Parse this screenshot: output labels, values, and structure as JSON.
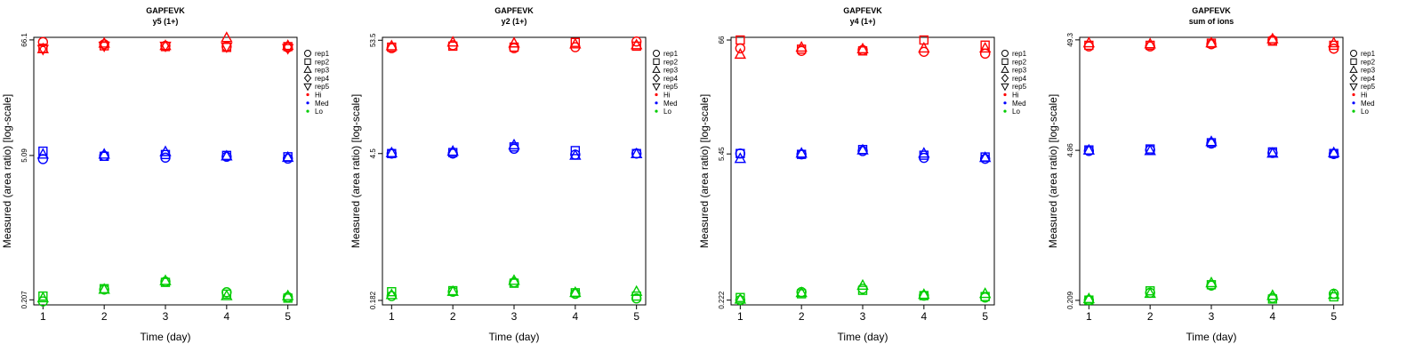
{
  "chart_data": [
    {
      "type": "scatter",
      "title": "GAPFEVK",
      "subtitle": "y5 (1+)",
      "xlabel": "Time (day)",
      "ylabel": "Measured (area ratio) [log-scale]",
      "x": [
        1,
        2,
        3,
        4,
        5
      ],
      "x_ticks": [
        "1",
        "2",
        "3",
        "4",
        "5"
      ],
      "y_scale": "log",
      "y_ticks": [
        0.207,
        5.09,
        66.1
      ],
      "y_tick_labels": [
        "0.207",
        "5.09",
        "66.1"
      ],
      "ylim": [
        0.185,
        70
      ],
      "legend_position": "right",
      "legend_shapes": [
        "rep1",
        "rep2",
        "rep3",
        "rep4",
        "rep5"
      ],
      "legend_levels": [
        {
          "name": "Hi",
          "color": "#ff0000"
        },
        {
          "name": "Med",
          "color": "#0000ff"
        },
        {
          "name": "Lo",
          "color": "#00cc00"
        }
      ],
      "series": [
        {
          "level": "Hi",
          "rep": "rep1",
          "values": [
            63,
            60,
            58,
            57,
            56
          ]
        },
        {
          "level": "Hi",
          "rep": "rep2",
          "values": [
            55,
            58,
            57,
            56,
            57
          ]
        },
        {
          "level": "Hi",
          "rep": "rep3",
          "values": [
            54,
            61,
            58,
            69,
            58
          ]
        },
        {
          "level": "Hi",
          "rep": "rep5",
          "values": [
            54,
            58,
            58,
            57,
            55
          ]
        },
        {
          "level": "Med",
          "rep": "rep1",
          "values": [
            4.7,
            5.05,
            4.85,
            4.95,
            4.75
          ]
        },
        {
          "level": "Med",
          "rep": "rep2",
          "values": [
            5.6,
            5.0,
            5.2,
            5.1,
            4.95
          ]
        },
        {
          "level": "Med",
          "rep": "rep3",
          "values": [
            5.2,
            5.2,
            5.5,
            5.0,
            4.85
          ]
        },
        {
          "level": "Lo",
          "rep": "rep1",
          "values": [
            0.2,
            0.26,
            0.31,
            0.245,
            0.22
          ]
        },
        {
          "level": "Lo",
          "rep": "rep2",
          "values": [
            0.225,
            0.265,
            0.305,
            0.235,
            0.215
          ]
        },
        {
          "level": "Lo",
          "rep": "rep3",
          "values": [
            0.215,
            0.26,
            0.315,
            0.225,
            0.225
          ]
        }
      ]
    },
    {
      "type": "scatter",
      "title": "GAPFEVK",
      "subtitle": "y2 (1+)",
      "xlabel": "Time (day)",
      "ylabel": "Measured (area ratio) [log-scale]",
      "x": [
        1,
        2,
        3,
        4,
        5
      ],
      "x_ticks": [
        "1",
        "2",
        "3",
        "4",
        "5"
      ],
      "y_scale": "log",
      "y_ticks": [
        0.182,
        4.5,
        53.5
      ],
      "y_tick_labels": [
        "0.182",
        "4.5",
        "53.5"
      ],
      "ylim": [
        0.165,
        57
      ],
      "legend_position": "right",
      "legend_shapes": [
        "rep1",
        "rep2",
        "rep3",
        "rep4",
        "rep5"
      ],
      "legend_levels": [
        {
          "name": "Hi",
          "color": "#ff0000"
        },
        {
          "name": "Med",
          "color": "#0000ff"
        },
        {
          "name": "Lo",
          "color": "#00cc00"
        }
      ],
      "series": [
        {
          "level": "Hi",
          "rep": "rep1",
          "values": [
            45,
            48,
            45,
            46,
            52
          ]
        },
        {
          "level": "Hi",
          "rep": "rep2",
          "values": [
            46,
            47,
            46,
            51,
            47
          ]
        },
        {
          "level": "Hi",
          "rep": "rep3",
          "values": [
            47,
            51,
            50,
            49,
            48
          ]
        },
        {
          "level": "Med",
          "rep": "rep1",
          "values": [
            4.5,
            4.5,
            5.0,
            4.4,
            4.5
          ]
        },
        {
          "level": "Med",
          "rep": "rep2",
          "values": [
            4.5,
            4.6,
            5.2,
            4.8,
            4.5
          ]
        },
        {
          "level": "Med",
          "rep": "rep3",
          "values": [
            4.55,
            4.7,
            5.4,
            4.3,
            4.45
          ]
        },
        {
          "level": "Lo",
          "rep": "rep1",
          "values": [
            0.2,
            0.22,
            0.27,
            0.21,
            0.19
          ]
        },
        {
          "level": "Lo",
          "rep": "rep2",
          "values": [
            0.22,
            0.225,
            0.265,
            0.215,
            0.2
          ]
        },
        {
          "level": "Lo",
          "rep": "rep3",
          "values": [
            0.205,
            0.22,
            0.28,
            0.215,
            0.22
          ]
        }
      ]
    },
    {
      "type": "scatter",
      "title": "GAPFEVK",
      "subtitle": "y4 (1+)",
      "xlabel": "Time (day)",
      "ylabel": "Measured (area ratio) [log-scale]",
      "x": [
        1,
        2,
        3,
        4,
        5
      ],
      "x_ticks": [
        "1",
        "2",
        "3",
        "4",
        "5"
      ],
      "y_scale": "log",
      "y_ticks": [
        0.222,
        5.45,
        66
      ],
      "y_tick_labels": [
        "0.222",
        "5.45",
        "66"
      ],
      "ylim": [
        0.2,
        70
      ],
      "legend_position": "right",
      "legend_shapes": [
        "rep1",
        "rep2",
        "rep3",
        "rep4",
        "rep5"
      ],
      "legend_levels": [
        {
          "name": "Hi",
          "color": "#ff0000"
        },
        {
          "name": "Med",
          "color": "#0000ff"
        },
        {
          "name": "Lo",
          "color": "#00cc00"
        }
      ],
      "series": [
        {
          "level": "Hi",
          "rep": "rep1",
          "values": [
            55,
            52,
            53,
            51,
            49
          ]
        },
        {
          "level": "Hi",
          "rep": "rep2",
          "values": [
            66,
            54,
            52,
            66,
            59
          ]
        },
        {
          "level": "Hi",
          "rep": "rep3",
          "values": [
            48,
            56,
            54,
            55,
            55
          ]
        },
        {
          "level": "Med",
          "rep": "rep1",
          "values": [
            5.5,
            5.4,
            5.8,
            5.0,
            4.9
          ]
        },
        {
          "level": "Med",
          "rep": "rep2",
          "values": [
            5.5,
            5.4,
            6.0,
            5.3,
            5.1
          ]
        },
        {
          "level": "Med",
          "rep": "rep3",
          "values": [
            4.9,
            5.5,
            5.9,
            5.5,
            5.0
          ]
        },
        {
          "level": "Lo",
          "rep": "rep1",
          "values": [
            0.222,
            0.265,
            0.285,
            0.245,
            0.235
          ]
        },
        {
          "level": "Lo",
          "rep": "rep2",
          "values": [
            0.235,
            0.255,
            0.275,
            0.245,
            0.24
          ]
        },
        {
          "level": "Lo",
          "rep": "rep3",
          "values": [
            0.225,
            0.26,
            0.305,
            0.25,
            0.255
          ]
        }
      ]
    },
    {
      "type": "scatter",
      "title": "GAPFEVK",
      "subtitle": "sum of ions",
      "xlabel": "Time (day)",
      "ylabel": "Measured (area ratio) [log-scale]",
      "x": [
        1,
        2,
        3,
        4,
        5
      ],
      "x_ticks": [
        "1",
        "2",
        "3",
        "4",
        "5"
      ],
      "y_scale": "log",
      "y_ticks": [
        0.209,
        4.86,
        49.3
      ],
      "y_tick_labels": [
        "0.209",
        "4.86",
        "49.3"
      ],
      "ylim": [
        0.19,
        52
      ],
      "legend_position": "right",
      "legend_shapes": [
        "rep1",
        "rep2",
        "rep3",
        "rep4",
        "rep5"
      ],
      "legend_levels": [
        {
          "name": "Hi",
          "color": "#ff0000"
        },
        {
          "name": "Med",
          "color": "#0000ff"
        },
        {
          "name": "Lo",
          "color": "#00cc00"
        }
      ],
      "series": [
        {
          "level": "Hi",
          "rep": "rep1",
          "values": [
            43,
            43,
            45,
            49,
            41
          ]
        },
        {
          "level": "Hi",
          "rep": "rep2",
          "values": [
            44,
            44,
            46,
            48,
            44
          ]
        },
        {
          "level": "Hi",
          "rep": "rep3",
          "values": [
            46,
            45,
            46,
            50,
            46
          ]
        },
        {
          "level": "Med",
          "rep": "rep1",
          "values": [
            4.8,
            4.9,
            5.6,
            4.6,
            4.5
          ]
        },
        {
          "level": "Med",
          "rep": "rep2",
          "values": [
            4.9,
            5.0,
            5.7,
            4.7,
            4.55
          ]
        },
        {
          "level": "Med",
          "rep": "rep3",
          "values": [
            4.85,
            4.8,
            5.8,
            4.55,
            4.6
          ]
        },
        {
          "level": "Lo",
          "rep": "rep1",
          "values": [
            0.21,
            0.245,
            0.285,
            0.22,
            0.24
          ]
        },
        {
          "level": "Lo",
          "rep": "rep2",
          "values": [
            0.21,
            0.255,
            0.29,
            0.215,
            0.225
          ]
        },
        {
          "level": "Lo",
          "rep": "rep3",
          "values": [
            0.215,
            0.24,
            0.3,
            0.23,
            0.235
          ]
        }
      ]
    }
  ]
}
